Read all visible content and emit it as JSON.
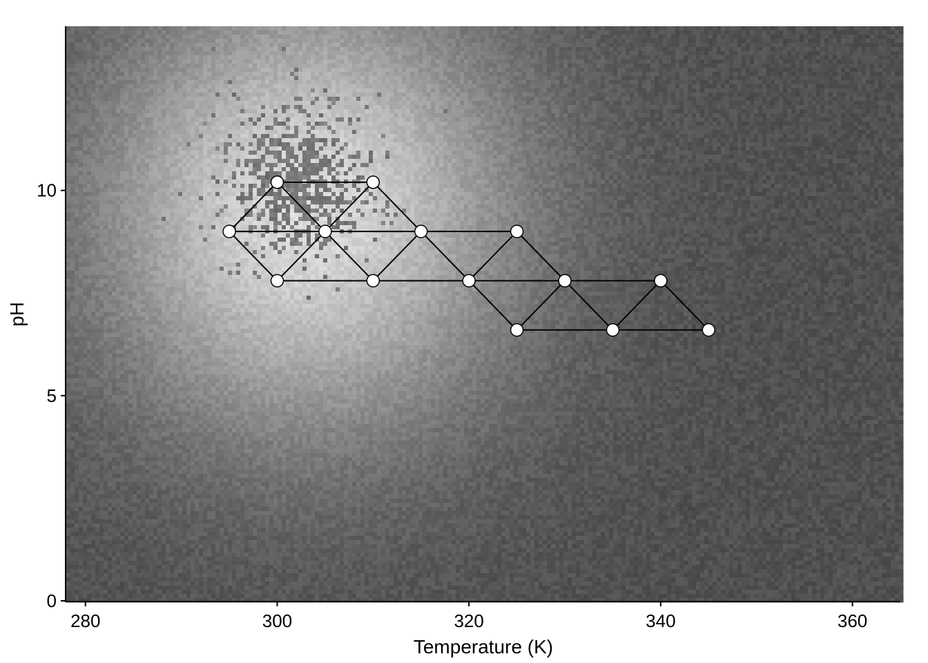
{
  "chart_data": {
    "type": "scatter",
    "title": "",
    "xlabel": "Temperature (K)",
    "ylabel": "pH",
    "xlim": [
      278,
      365
    ],
    "ylim": [
      0,
      14
    ],
    "x_ticks": [
      280,
      300,
      320,
      340,
      360
    ],
    "y_ticks": [
      0,
      5,
      10
    ],
    "grid": false,
    "legend": "none",
    "background": {
      "type": "heatmap",
      "colormap": "grayscale",
      "peak_x": 303,
      "peak_y": 9.5,
      "dense_cluster_x": 302,
      "dense_cluster_y": 10.2
    },
    "points": [
      {
        "x": 300,
        "y": 10.2
      },
      {
        "x": 310,
        "y": 10.2
      },
      {
        "x": 295,
        "y": 9.0
      },
      {
        "x": 305,
        "y": 9.0
      },
      {
        "x": 315,
        "y": 9.0
      },
      {
        "x": 325,
        "y": 9.0
      },
      {
        "x": 300,
        "y": 7.8
      },
      {
        "x": 310,
        "y": 7.8
      },
      {
        "x": 320,
        "y": 7.8
      },
      {
        "x": 330,
        "y": 7.8
      },
      {
        "x": 340,
        "y": 7.8
      },
      {
        "x": 325,
        "y": 6.6
      },
      {
        "x": 335,
        "y": 6.6
      },
      {
        "x": 345,
        "y": 6.6
      }
    ],
    "edges": [
      [
        0,
        1
      ],
      [
        0,
        2
      ],
      [
        0,
        3
      ],
      [
        1,
        3
      ],
      [
        1,
        4
      ],
      [
        2,
        3
      ],
      [
        3,
        4
      ],
      [
        4,
        5
      ],
      [
        2,
        6
      ],
      [
        3,
        6
      ],
      [
        3,
        7
      ],
      [
        4,
        7
      ],
      [
        4,
        8
      ],
      [
        5,
        8
      ],
      [
        5,
        9
      ],
      [
        6,
        7
      ],
      [
        7,
        8
      ],
      [
        8,
        9
      ],
      [
        9,
        10
      ],
      [
        8,
        11
      ],
      [
        9,
        11
      ],
      [
        9,
        12
      ],
      [
        10,
        12
      ],
      [
        10,
        13
      ],
      [
        11,
        12
      ],
      [
        12,
        13
      ]
    ],
    "colors": {
      "point_fill": "#ffffff",
      "point_stroke": "#000000",
      "edge": "#000000"
    }
  }
}
